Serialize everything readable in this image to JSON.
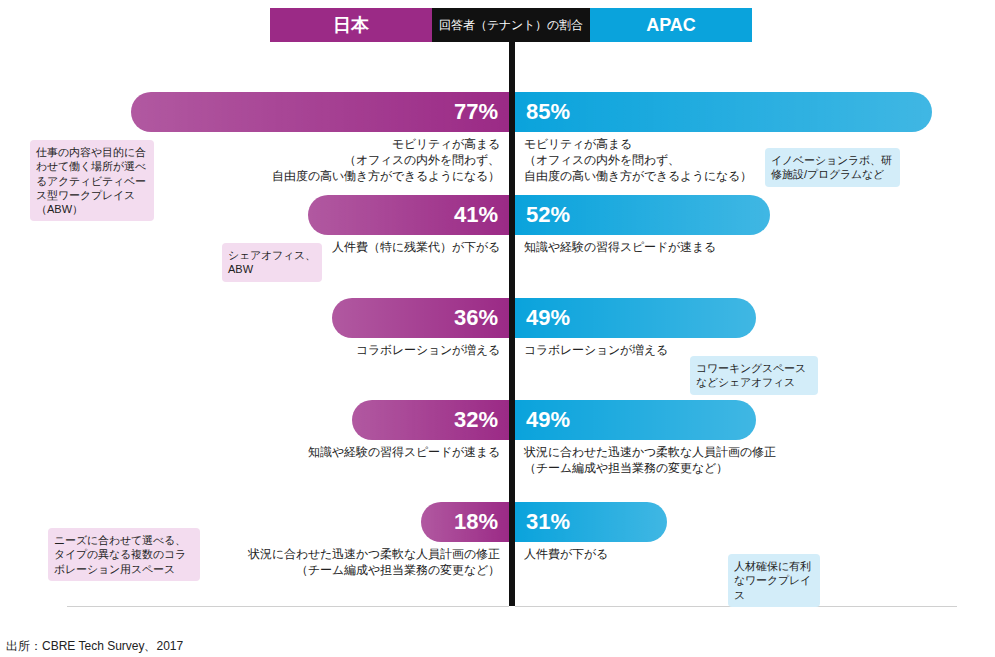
{
  "header": {
    "label": "回答者（テナント）の割合"
  },
  "chart_data": [
    {
      "type": "bar",
      "orientation": "horizontal",
      "title": "日本",
      "categories": [
        "モビリティが高まる\n（オフィスの内外を問わず、\n自由度の高い働き方ができるようになる）",
        "人件費（特に残業代）が下がる",
        "コラボレーションが増える",
        "知識や経験の習得スピードが速まる",
        "状況に合わせた迅速かつ柔軟な人員計画の修正\n（チーム編成や担当業務の変更など）"
      ],
      "values": [
        77,
        41,
        36,
        32,
        18
      ],
      "value_labels": [
        "77%",
        "41%",
        "36%",
        "32%",
        "18%"
      ],
      "xlim": [
        0,
        90
      ],
      "tick_labels": false,
      "data_labels": true,
      "color": "#9b2a86",
      "annotations": [
        "仕事の内容や目的に合わせて働く場所が選べるアクティビティベース型ワークプレイス（ABW）",
        "シェアオフィス、ABW",
        "ニーズに合わせて選べる、タイプの異なる複数のコラボレーション用スペース"
      ]
    },
    {
      "type": "bar",
      "orientation": "horizontal",
      "title": "APAC",
      "categories": [
        "モビリティが高まる\n（オフィスの内外を問わず、\n自由度の高い働き方ができるようになる）",
        "知識や経験の習得スピードが速まる",
        "コラボレーションが増える",
        "状況に合わせた迅速かつ柔軟な人員計画の修正\n（チーム編成や担当業務の変更など）",
        "人件費が下がる"
      ],
      "values": [
        85,
        52,
        49,
        49,
        31
      ],
      "value_labels": [
        "85%",
        "52%",
        "49%",
        "49%",
        "31%"
      ],
      "xlim": [
        0,
        90
      ],
      "tick_labels": false,
      "data_labels": true,
      "color": "#0aa3dc",
      "annotations": [
        "イノベーションラボ、研修施設/プログラムなど",
        "コワーキングスペースなどシェアオフィス",
        "人材確保に有利なワークプレイス"
      ]
    }
  ],
  "source": "出所：CBRE Tech Survey、2017"
}
